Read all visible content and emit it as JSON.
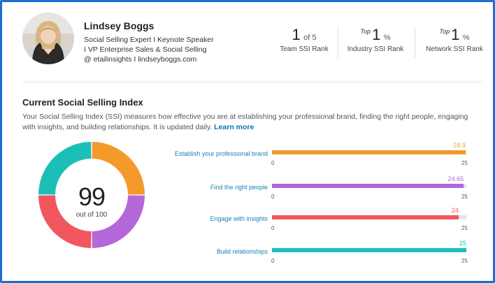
{
  "profile": {
    "name": "Lindsey Boggs",
    "headline_lines": [
      "Social Selling Expert I Keynote Speaker",
      "I VP Enterprise Sales & Social Selling",
      "@ etailinsights I lindseyboggs.com"
    ]
  },
  "ranks": [
    {
      "prefix": "",
      "value": "1",
      "suffix": "of 5",
      "label": "Team SSI Rank"
    },
    {
      "prefix": "Top",
      "value": "1",
      "suffix": "%",
      "label": "Industry SSI Rank"
    },
    {
      "prefix": "Top",
      "value": "1",
      "suffix": "%",
      "label": "Network SSI Rank"
    }
  ],
  "ssi": {
    "title": "Current Social Selling Index",
    "description": "Your Social Selling Index (SSI) measures how effective you are at establishing your professional brand, finding the right people, engaging with insights, and building relationships. It is updated daily.",
    "learn_more": "Learn more",
    "score": "99",
    "score_sub": "out of 100",
    "components": [
      {
        "label": "Establish your professional brand",
        "value": 24.9,
        "display": "24.9",
        "min": "0",
        "max": "25",
        "color": "#f39a2b"
      },
      {
        "label": "Find the right people",
        "value": 24.65,
        "display": "24.65",
        "min": "0",
        "max": "25",
        "color": "#b467d8"
      },
      {
        "label": "Engage with insights",
        "value": 24,
        "display": "24",
        "min": "0",
        "max": "25",
        "color": "#f0575f"
      },
      {
        "label": "Build relationships",
        "value": 25,
        "display": "25",
        "min": "0",
        "max": "25",
        "color": "#1cbfb8"
      }
    ]
  },
  "colors": {
    "frame": "#1a6fd6",
    "link": "#0a73b7"
  }
}
